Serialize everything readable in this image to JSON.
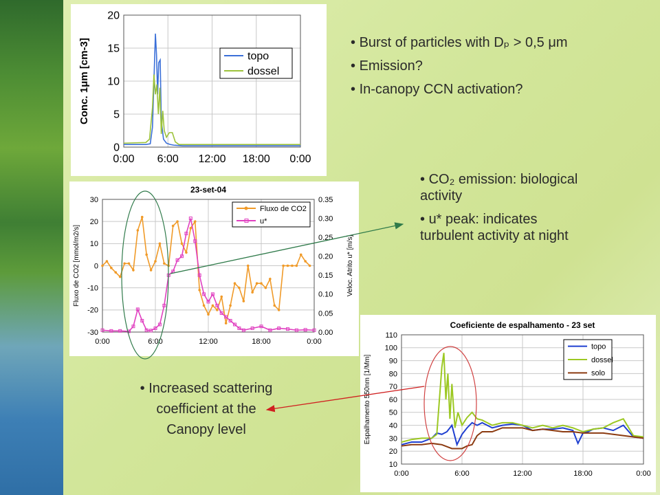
{
  "slide": {
    "bullets_top": [
      "Burst of particles with Dₚ > 0,5 μm",
      "Emission?",
      "In-canopy CCN activation?"
    ],
    "bullets_mid": [
      "CO₂ emission: biological activity",
      "u* peak: indicates turbulent activity at night"
    ],
    "bottom_note": "Increased scattering coefficient at the Canopy level",
    "colors": {
      "background": "#d8eaa6",
      "arrow_green": "#2f7a4a",
      "arrow_red": "#d02020"
    }
  },
  "chart_data": [
    {
      "type": "line",
      "title": "",
      "xlabel": "",
      "ylabel": "Conc. 1μm [cm-3]",
      "x_ticks": [
        "0:00",
        "6:00",
        "12:00",
        "18:00",
        "0:00"
      ],
      "xlim": [
        0,
        24
      ],
      "ylim": [
        0,
        20
      ],
      "y_ticks": [
        0,
        5,
        10,
        15,
        20
      ],
      "grid": true,
      "legend": "top-right",
      "series": [
        {
          "name": "topo",
          "color": "#3a6fd8",
          "x": [
            0,
            3.0,
            3.6,
            3.9,
            4.1,
            4.3,
            4.45,
            4.6,
            4.75,
            4.95,
            5.1,
            5.4,
            5.8,
            6.3,
            6.8,
            8,
            12,
            18,
            24
          ],
          "y": [
            0.4,
            0.4,
            0.5,
            3,
            10,
            17.2,
            14,
            8,
            12.8,
            13.2,
            4,
            1.2,
            0.6,
            0.4,
            0.3,
            0.2,
            0.2,
            0.2,
            0.2
          ]
        },
        {
          "name": "dossel",
          "color": "#9cc23a",
          "x": [
            0,
            3.0,
            3.5,
            3.9,
            4.1,
            4.3,
            4.5,
            4.7,
            4.9,
            5.1,
            5.3,
            5.5,
            5.8,
            6.2,
            6.6,
            7.0,
            7.5,
            12,
            18,
            24
          ],
          "y": [
            0.6,
            0.7,
            1.2,
            6,
            11,
            8,
            9.5,
            5,
            9,
            2,
            5.5,
            2.5,
            1.5,
            2.2,
            2.2,
            0.8,
            0.4,
            0.4,
            0.4,
            0.4
          ]
        }
      ]
    },
    {
      "type": "line",
      "title": "23-set-04",
      "xlabel": "",
      "ylabel": "Fluxo de CO2 [mmol/m2/s]",
      "y2label": "Veloc. Atrito u* [m/s]",
      "x_ticks": [
        "0:00",
        "6:00",
        "12:00",
        "18:00",
        "0:00"
      ],
      "xlim": [
        0,
        24
      ],
      "ylim": [
        -30,
        30
      ],
      "y_ticks": [
        -30,
        -20,
        -10,
        0,
        10,
        20,
        30
      ],
      "y2lim": [
        0,
        0.35
      ],
      "y2_ticks": [
        "0.00",
        "0.05",
        "0.10",
        "0.15",
        "0.20",
        "0.25",
        "0.30",
        "0.35"
      ],
      "grid": true,
      "legend": "top-right",
      "series": [
        {
          "name": "Fluxo de CO2",
          "color": "#f09a28",
          "axis": "left",
          "x": [
            0,
            0.5,
            1,
            1.5,
            2,
            2.5,
            3,
            3.5,
            4,
            4.5,
            5,
            5.5,
            6,
            6.5,
            7,
            7.5,
            8,
            8.5,
            9,
            9.5,
            10,
            10.5,
            11,
            11.5,
            12,
            12.5,
            13,
            13.5,
            14,
            14.5,
            15,
            15.5,
            16,
            16.5,
            17,
            17.5,
            18,
            18.5,
            19,
            19.5,
            20,
            20.5,
            21,
            21.5,
            22,
            22.5,
            23,
            23.5
          ],
          "y": [
            0,
            2,
            -1,
            -3,
            -5,
            1,
            1,
            -2,
            16,
            22,
            5,
            -2,
            2,
            10,
            1,
            0,
            18,
            20,
            10,
            6,
            17,
            20,
            -11,
            -18,
            -22,
            -18,
            -20,
            -14,
            -26,
            -18,
            -8,
            -10,
            -16,
            0,
            -12,
            -8,
            -8,
            -10,
            -6,
            -18,
            -20,
            0,
            0,
            0,
            0,
            5,
            2,
            0
          ]
        },
        {
          "name": "u*",
          "color": "#e040c0",
          "axis": "right",
          "x": [
            0,
            1,
            2,
            3,
            3.5,
            4,
            4.5,
            5,
            5.5,
            6,
            6.5,
            7,
            7.5,
            8,
            8.5,
            9,
            9.5,
            10,
            10.5,
            11,
            11.5,
            12,
            12.5,
            13,
            13.5,
            14,
            14.5,
            15,
            15.5,
            16,
            17,
            18,
            19,
            20,
            21,
            22,
            23,
            24
          ],
          "y": [
            0.005,
            0.003,
            0.003,
            0.002,
            0.015,
            0.06,
            0.03,
            0.005,
            0.004,
            0.01,
            0.02,
            0.07,
            0.15,
            0.16,
            0.19,
            0.2,
            0.26,
            0.3,
            0.24,
            0.15,
            0.1,
            0.08,
            0.1,
            0.07,
            0.05,
            0.04,
            0.03,
            0.02,
            0.01,
            0.005,
            0.01,
            0.015,
            0.005,
            0.01,
            0.008,
            0.005,
            0.006,
            0.005
          ]
        }
      ]
    },
    {
      "type": "line",
      "title": "Coeficiente de espalhamento - 23 set",
      "xlabel": "",
      "ylabel": "Espalhamento 550nm [1/Mm]",
      "x_ticks": [
        "0:00",
        "6:00",
        "12:00",
        "18:00",
        "0:00"
      ],
      "xlim": [
        0,
        24
      ],
      "ylim": [
        10,
        110
      ],
      "y_ticks": [
        10,
        20,
        30,
        40,
        50,
        60,
        70,
        80,
        90,
        100,
        110
      ],
      "grid": true,
      "legend": "top-right",
      "series": [
        {
          "name": "topo",
          "color": "#1f3fd0",
          "x": [
            0,
            1,
            2,
            3,
            3.5,
            4,
            4.5,
            5,
            5.5,
            6,
            6.5,
            7,
            7.5,
            8,
            9,
            10,
            11,
            12,
            13,
            14,
            15,
            16,
            17,
            17.5,
            18,
            18.5,
            19,
            20,
            21,
            22,
            23,
            24
          ],
          "y": [
            25,
            27,
            27,
            30,
            34,
            33,
            35,
            40,
            25,
            33,
            38,
            42,
            40,
            42,
            38,
            40,
            41,
            40,
            36,
            37,
            37,
            38,
            36,
            26,
            34,
            35,
            37,
            38,
            36,
            40,
            31,
            30
          ]
        },
        {
          "name": "dossel",
          "color": "#9cc822",
          "x": [
            0,
            1,
            2,
            3,
            3.5,
            4,
            4.2,
            4.4,
            4.6,
            4.8,
            5,
            5.3,
            5.6,
            6,
            6.5,
            7,
            7.5,
            8,
            9,
            10,
            11,
            12,
            13,
            14,
            15,
            16,
            17,
            18,
            19,
            20,
            21,
            22,
            23,
            24
          ],
          "y": [
            27,
            29,
            30,
            30,
            33,
            85,
            96,
            60,
            80,
            45,
            72,
            38,
            50,
            40,
            46,
            50,
            45,
            44,
            40,
            42,
            42,
            40,
            38,
            40,
            38,
            40,
            38,
            35,
            37,
            38,
            42,
            45,
            32,
            31
          ]
        },
        {
          "name": "solo",
          "color": "#8b3a10",
          "x": [
            0,
            1,
            2,
            3,
            4,
            5,
            6,
            6.5,
            7,
            7.5,
            8,
            9,
            10,
            11,
            12,
            13,
            14,
            15,
            16,
            17,
            18,
            19,
            20,
            21,
            22,
            23,
            24
          ],
          "y": [
            24,
            25,
            25,
            26,
            25,
            22,
            22,
            24,
            25,
            32,
            35,
            35,
            38,
            38,
            38,
            36,
            37,
            36,
            35,
            35,
            34,
            34,
            34,
            33,
            32,
            31,
            30
          ]
        }
      ]
    }
  ]
}
